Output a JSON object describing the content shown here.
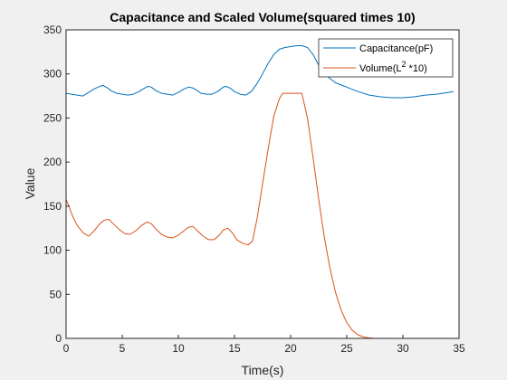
{
  "chart_data": {
    "type": "line",
    "title": "Capacitance and Scaled Volume(squared times 10)",
    "xlabel": "Time(s)",
    "ylabel": "Value",
    "xlim": [
      0,
      35
    ],
    "ylim": [
      0,
      350
    ],
    "xticks": [
      0,
      5,
      10,
      15,
      20,
      25,
      30,
      35
    ],
    "yticks": [
      0,
      50,
      100,
      150,
      200,
      250,
      300,
      350
    ],
    "grid": false,
    "legend_position": "top-right",
    "legend": [
      {
        "base": "Capacitance(pF)",
        "sup": ""
      },
      {
        "base": "Volume(L",
        "sup": "2",
        "after": " *10)"
      }
    ],
    "series": [
      {
        "name": "Capacitance(pF)",
        "color": "#0072bd",
        "x": [
          0,
          0.5,
          1,
          1.5,
          2,
          2.5,
          3,
          3.3,
          3.7,
          4,
          4.5,
          5,
          5.5,
          6,
          6.5,
          7,
          7.3,
          7.6,
          8,
          8.5,
          9,
          9.5,
          10,
          10.5,
          10.9,
          11.3,
          11.7,
          12,
          12.5,
          13,
          13.5,
          14,
          14.2,
          14.6,
          15,
          15.5,
          16,
          16.5,
          17,
          17.5,
          18,
          18.5,
          19,
          19.5,
          20,
          20.5,
          21,
          21.5,
          22,
          22.5,
          23,
          23.5,
          24,
          25,
          26,
          27,
          28,
          29,
          30,
          31,
          32,
          33,
          34,
          34.5
        ],
        "y": [
          278,
          277,
          276,
          275,
          279,
          283,
          286,
          287,
          284,
          281,
          278,
          277,
          276,
          277,
          280,
          284,
          286,
          285,
          281,
          278,
          277,
          276,
          279,
          283,
          285,
          284,
          281,
          278,
          277,
          277,
          280,
          285,
          286,
          284,
          280,
          277,
          276,
          280,
          289,
          300,
          312,
          322,
          328,
          330,
          331,
          332,
          332,
          330,
          322,
          310,
          300,
          295,
          290,
          285,
          280,
          276,
          274,
          273,
          273,
          274,
          276,
          277,
          279,
          280
        ]
      },
      {
        "name": "Volume(L2 *10)",
        "color": "#d95319",
        "x": [
          0,
          0.3,
          0.6,
          1,
          1.5,
          2,
          2.5,
          3,
          3.4,
          3.8,
          4.2,
          4.7,
          5.2,
          5.7,
          6.2,
          6.7,
          7.2,
          7.6,
          8,
          8.5,
          9,
          9.5,
          10,
          10.5,
          10.9,
          11.3,
          11.7,
          12.2,
          12.7,
          13.2,
          13.7,
          14,
          14.4,
          14.8,
          15.2,
          15.7,
          16.2,
          16.6,
          17,
          17.5,
          18,
          18.5,
          19,
          19.3,
          19.6,
          20,
          20.5,
          21,
          21.5,
          22,
          22.5,
          23,
          23.5,
          24,
          24.5,
          25,
          25.5,
          26,
          26.5,
          27,
          27.5,
          28,
          29,
          30
        ],
        "y": [
          158,
          148,
          138,
          128,
          120,
          116,
          122,
          130,
          134,
          135,
          130,
          124,
          119,
          118,
          122,
          128,
          132,
          130,
          124,
          118,
          115,
          114,
          117,
          122,
          126,
          127,
          122,
          116,
          112,
          112,
          118,
          123,
          125,
          120,
          112,
          108,
          106,
          110,
          135,
          175,
          215,
          252,
          272,
          278,
          278,
          278,
          278,
          278,
          250,
          205,
          158,
          115,
          80,
          52,
          32,
          18,
          9,
          4,
          1.5,
          0.5,
          0,
          0,
          0,
          0
        ]
      }
    ]
  }
}
